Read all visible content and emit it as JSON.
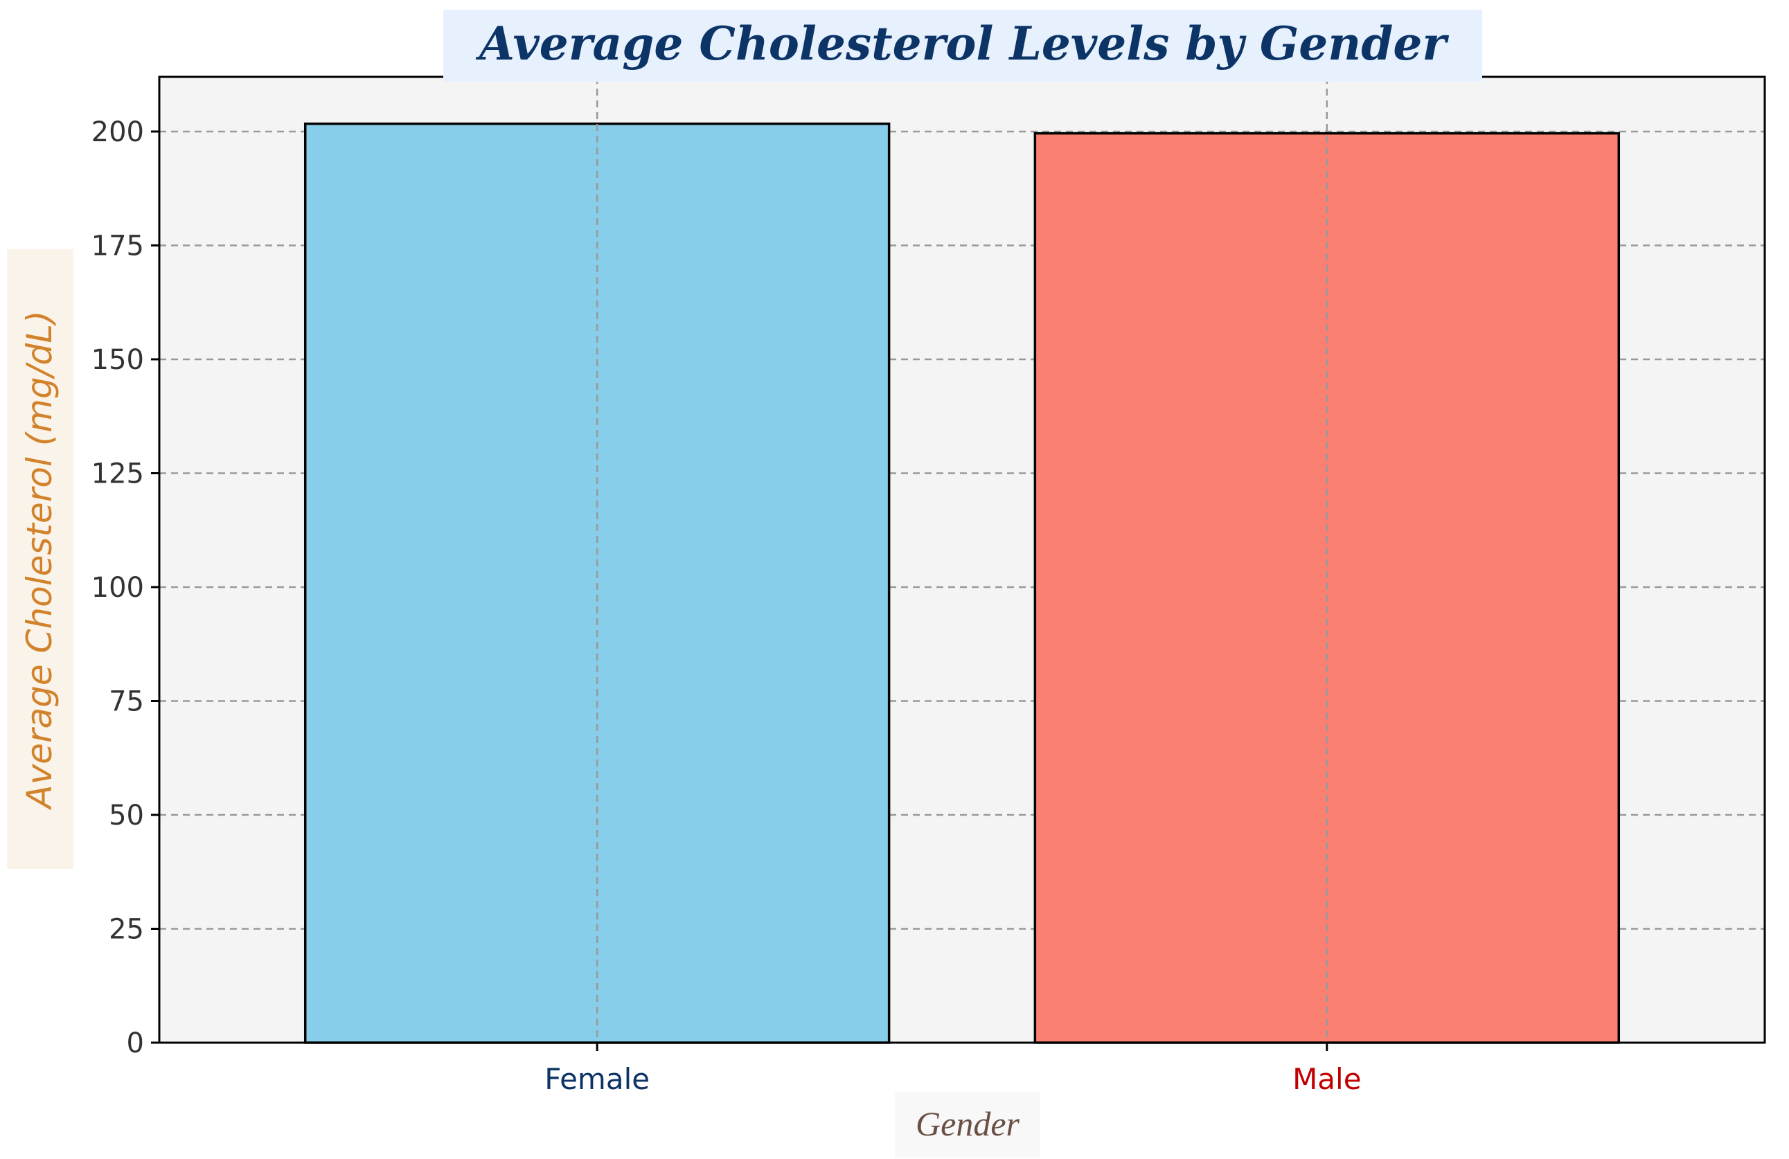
{
  "chart_data": {
    "type": "bar",
    "title": "Average Cholesterol Levels by Gender",
    "xlabel": "Gender",
    "ylabel": "Average Cholesterol (mg/dL)",
    "categories": [
      "Female",
      "Male"
    ],
    "values": [
      201.7,
      199.6
    ],
    "bar_colors": [
      "#87ceeb",
      "#fa8072"
    ],
    "category_label_colors": [
      "#0d3466",
      "#c00000"
    ],
    "ylim": [
      0,
      212
    ],
    "yticks": [
      0,
      25,
      50,
      75,
      100,
      125,
      150,
      175,
      200
    ],
    "grid": true,
    "plot_background": "#f4f4f4",
    "title_background": "#e6f1fd"
  }
}
